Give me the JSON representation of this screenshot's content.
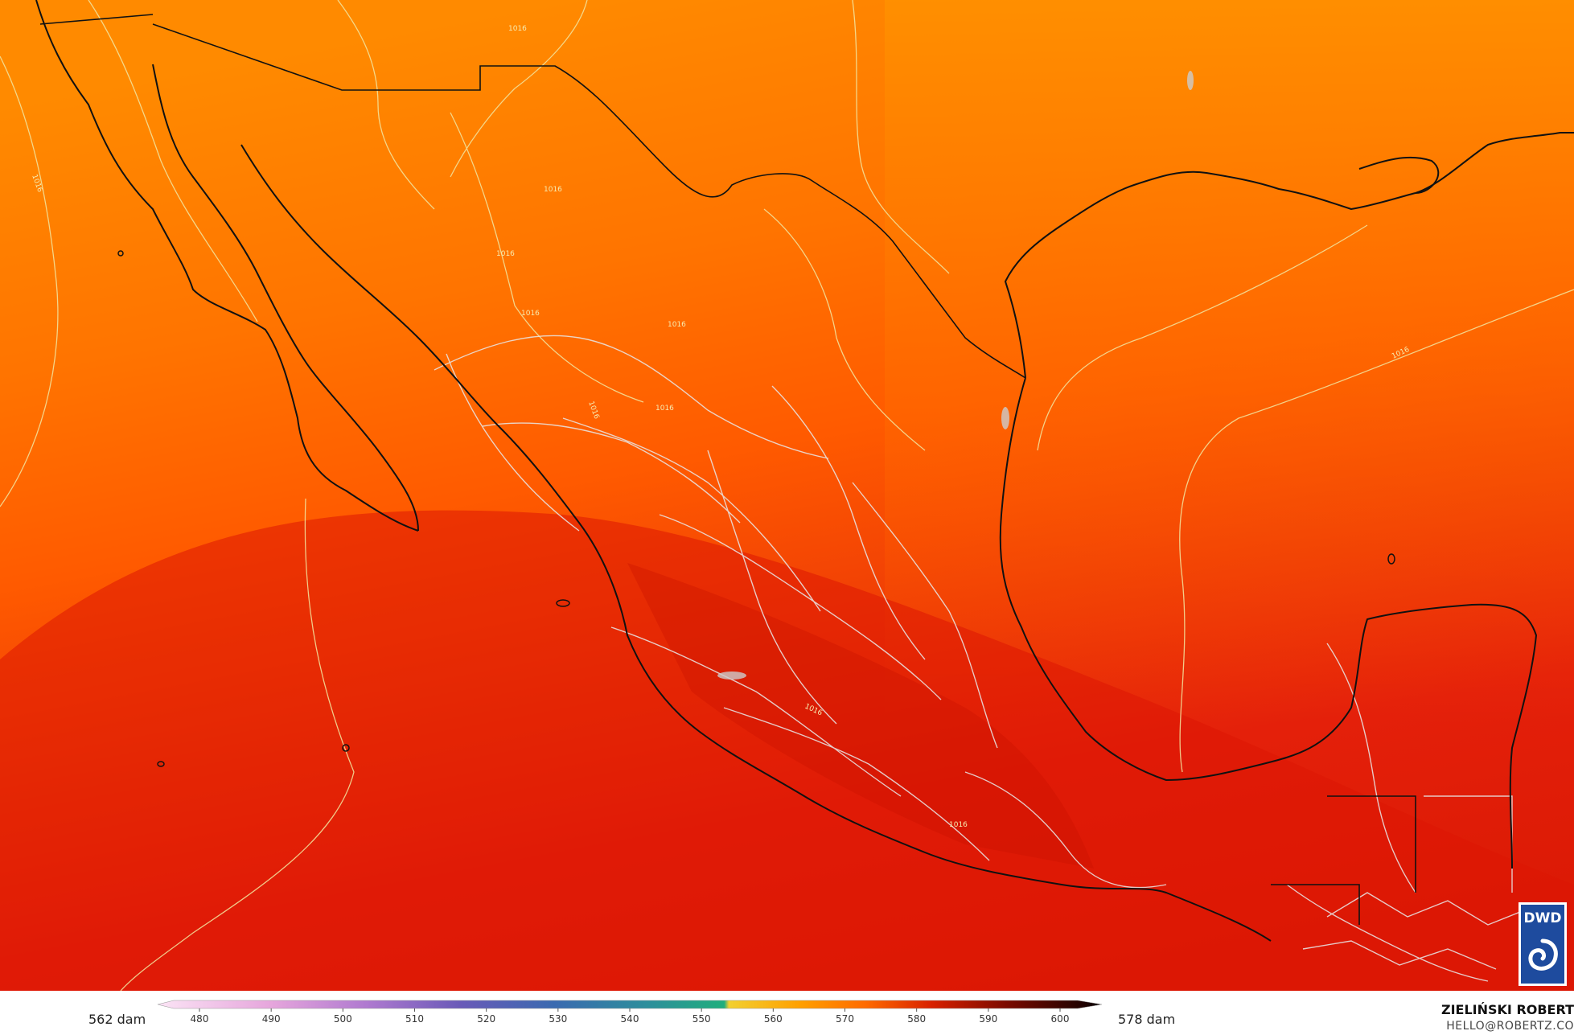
{
  "map": {
    "contour_value": "1016",
    "colors": {
      "north": "#ff8c00",
      "mid": "#ff6a00",
      "south": "#e8220a",
      "deep": "#d81400",
      "coast": "#111111",
      "states": "#e8e8e8",
      "isobar": "#f2e6a0"
    }
  },
  "colorbar": {
    "min_label": "562 dam",
    "max_label": "578 dam",
    "ticks": [
      "480",
      "490",
      "500",
      "510",
      "520",
      "530",
      "540",
      "550",
      "560",
      "570",
      "580",
      "590",
      "600"
    ]
  },
  "credit": {
    "name": "ZIELIŃSKI ROBERT",
    "email": "HELLO@ROBERTZ.CO"
  },
  "logo": {
    "text": "DWD",
    "icon": "dwd-swirl-icon",
    "color": "#1e4b9e"
  }
}
